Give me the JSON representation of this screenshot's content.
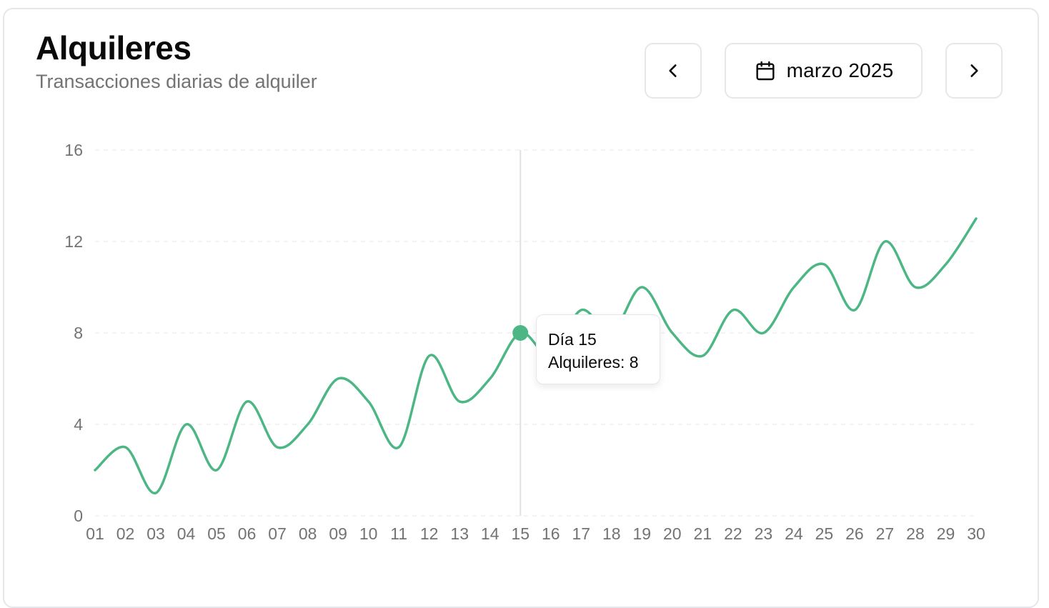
{
  "header": {
    "title": "Alquileres",
    "subtitle": "Transacciones diarias de alquiler"
  },
  "controls": {
    "prev_icon": "chevron-left-icon",
    "month_icon": "calendar-icon",
    "month_label": "marzo 2025",
    "next_icon": "chevron-right-icon"
  },
  "tooltip": {
    "day_label": "Día",
    "day_value": "15",
    "series_label": "Alquileres:",
    "series_value": "8"
  },
  "colors": {
    "line": "#4cb784",
    "grid": "#ececec",
    "axis_text": "#737373",
    "cursor": "#e0e0e0"
  },
  "chart_data": {
    "type": "line",
    "title": "Alquileres",
    "subtitle": "Transacciones diarias de alquiler",
    "xlabel": "",
    "ylabel": "",
    "categories": [
      "01",
      "02",
      "03",
      "04",
      "05",
      "06",
      "07",
      "08",
      "09",
      "10",
      "11",
      "12",
      "13",
      "14",
      "15",
      "16",
      "17",
      "18",
      "19",
      "20",
      "21",
      "22",
      "23",
      "24",
      "25",
      "26",
      "27",
      "28",
      "29",
      "30"
    ],
    "series": [
      {
        "name": "Alquileres",
        "values": [
          2,
          3,
          1,
          4,
          2,
          5,
          3,
          4,
          6,
          5,
          3,
          7,
          5,
          6,
          8,
          7,
          9,
          8,
          10,
          8,
          7,
          9,
          8,
          10,
          11,
          9,
          12,
          10,
          11,
          13
        ]
      }
    ],
    "yticks": [
      "0",
      "4",
      "8",
      "12",
      "16"
    ],
    "ylim": [
      0,
      16
    ],
    "grid": true,
    "grid_style": "dashed-horizontal",
    "legend": "none",
    "curve": "smooth",
    "active_index": 14
  }
}
